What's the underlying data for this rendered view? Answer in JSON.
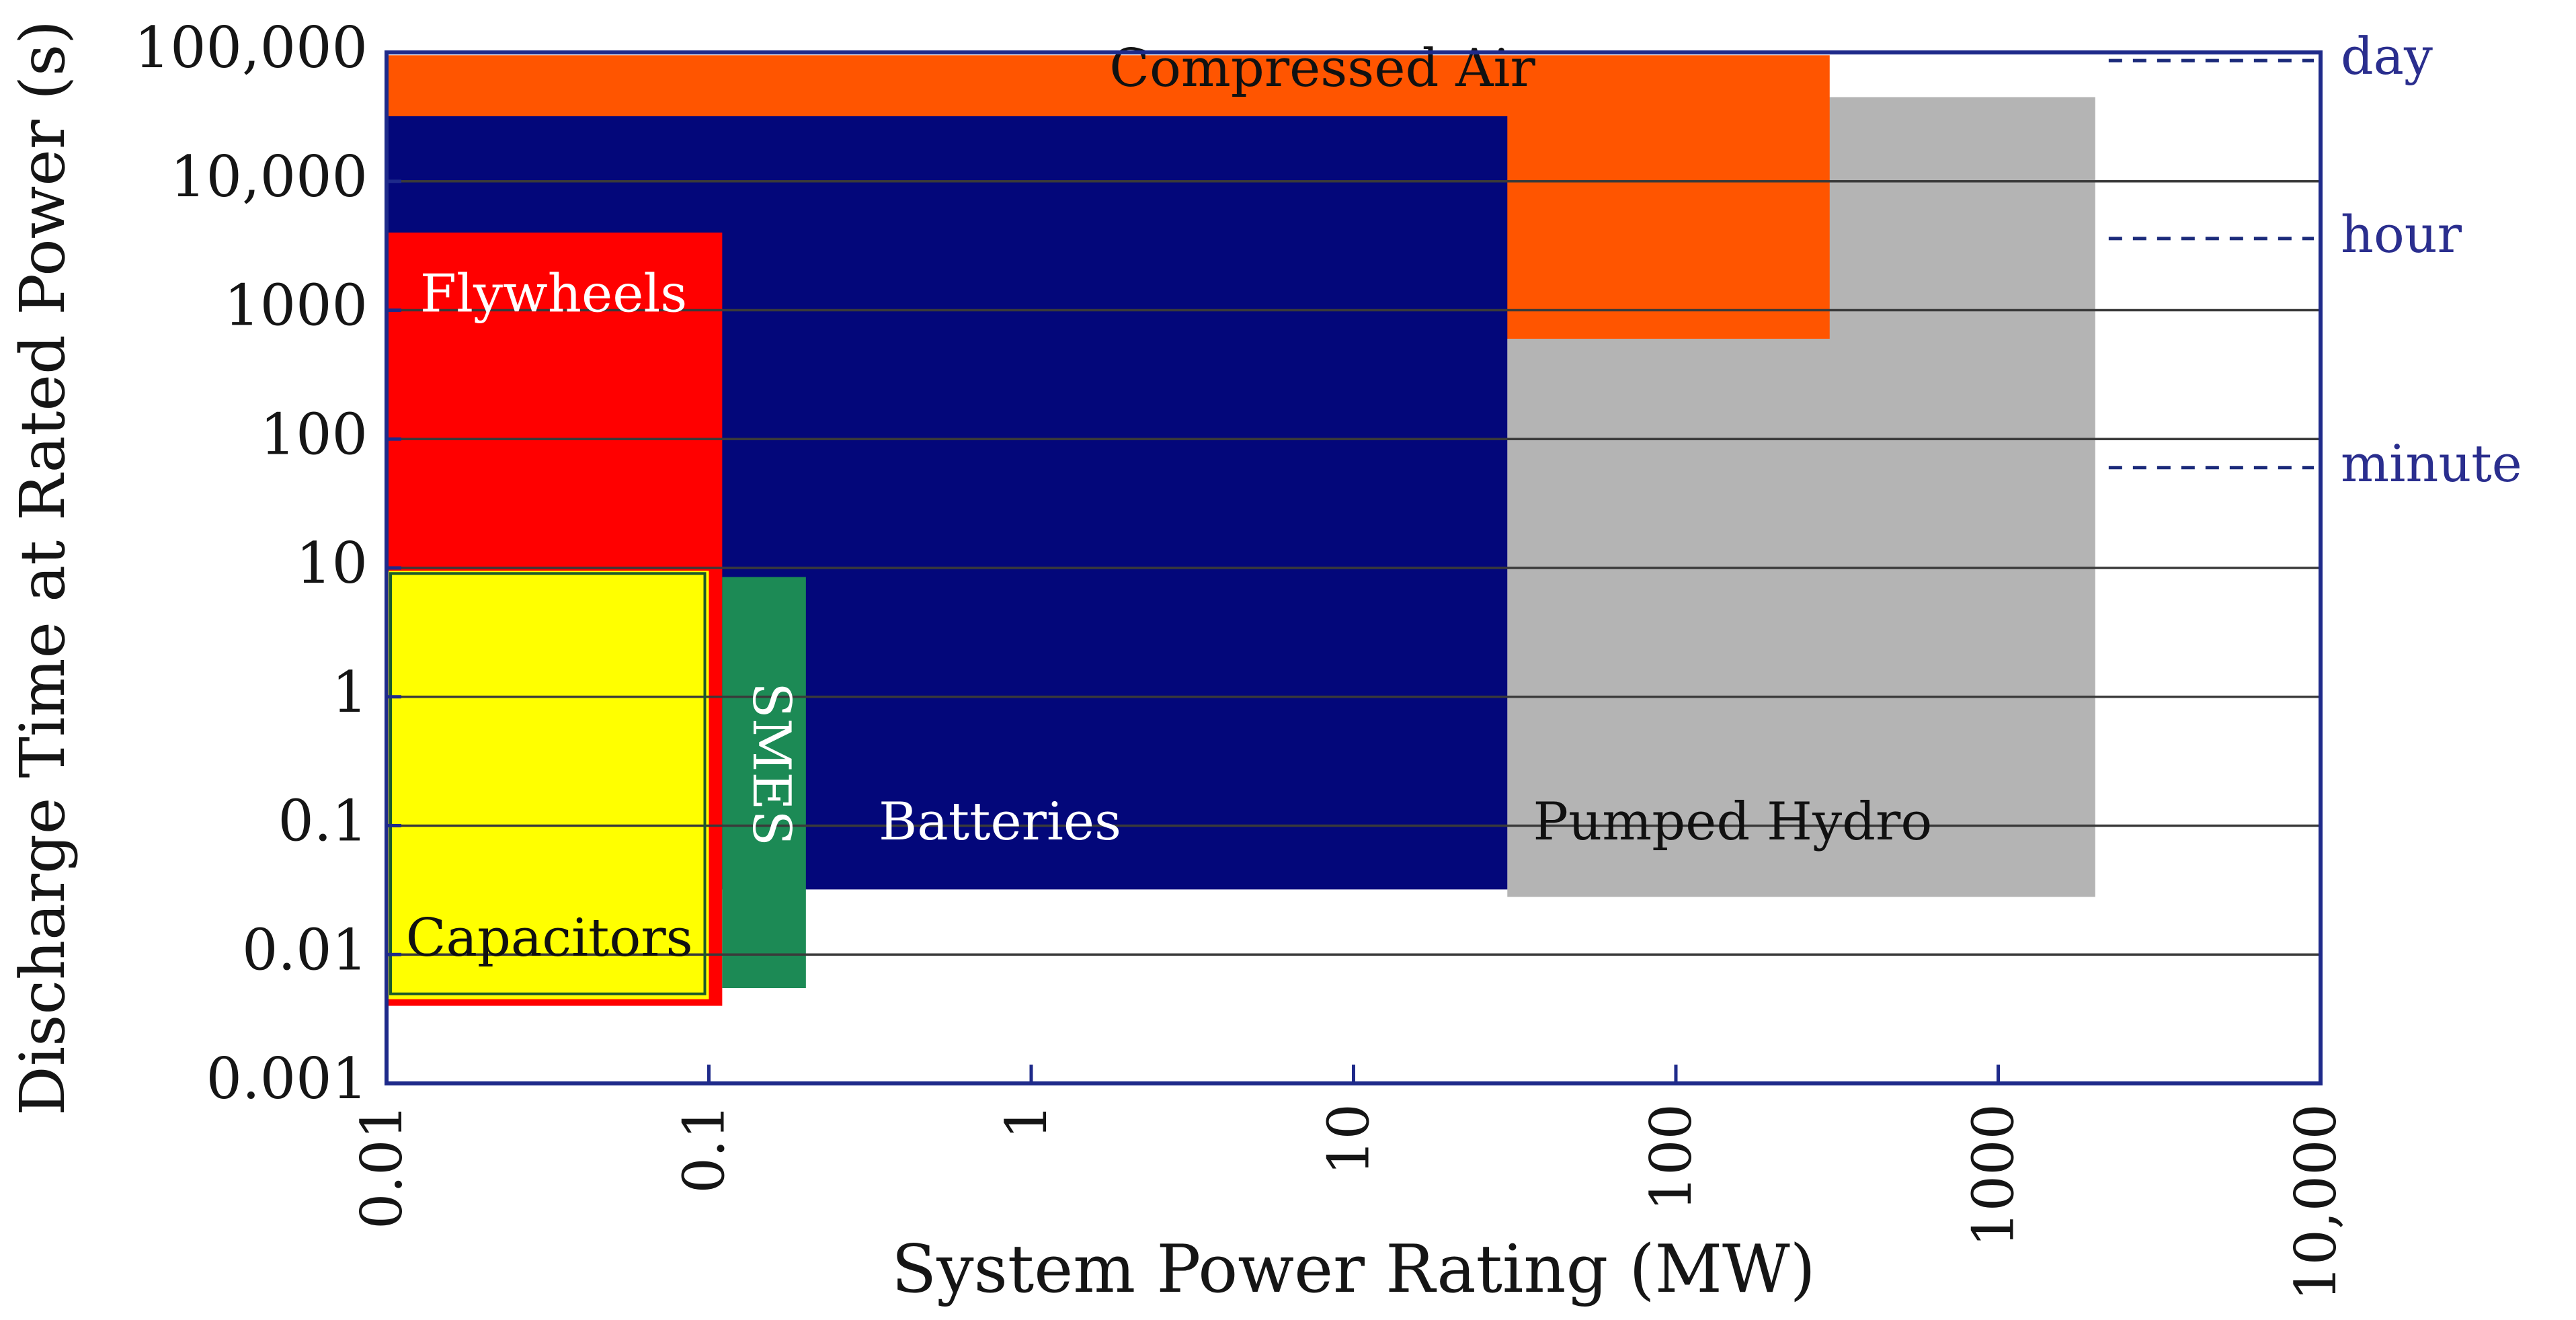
{
  "chart_data": {
    "type": "range-rectangles",
    "xlabel": "System Power Rating (MW)",
    "ylabel": "Discharge Time at Rated Power (s)",
    "x_scale": "log",
    "y_scale": "log",
    "xlim": [
      0.01,
      10000
    ],
    "ylim": [
      0.001,
      100000
    ],
    "x_ticks": [
      {
        "value": 0.01,
        "label": "0.01"
      },
      {
        "value": 0.1,
        "label": "0.1"
      },
      {
        "value": 1,
        "label": "1"
      },
      {
        "value": 10,
        "label": "10"
      },
      {
        "value": 100,
        "label": "100"
      },
      {
        "value": 1000,
        "label": "1000"
      },
      {
        "value": 10000,
        "label": "10,000"
      }
    ],
    "y_ticks": [
      {
        "value": 100000,
        "label": "100,000"
      },
      {
        "value": 10000,
        "label": "10,000"
      },
      {
        "value": 1000,
        "label": "1000"
      },
      {
        "value": 100,
        "label": "100"
      },
      {
        "value": 10,
        "label": "10"
      },
      {
        "value": 1,
        "label": "1"
      },
      {
        "value": 0.1,
        "label": "0.1"
      },
      {
        "value": 0.01,
        "label": "0.01"
      },
      {
        "value": 0.001,
        "label": "0.001"
      }
    ],
    "regions": [
      {
        "name": "Pumped Hydro",
        "x": [
          30,
          2000
        ],
        "y": [
          0.028,
          45000
        ],
        "color": "#b4b4b4",
        "label_color": "#111111",
        "label_at": [
          150,
          0.1
        ],
        "vertical": false
      },
      {
        "name": "Compressed Air",
        "x": [
          0.01,
          300
        ],
        "y": [
          600,
          95000
        ],
        "color": "#ff5500",
        "label_color": "#111111",
        "label_at": [
          8,
          70000
        ],
        "vertical": false
      },
      {
        "name": "Batteries",
        "x": [
          0.01,
          30
        ],
        "y": [
          0.032,
          32000
        ],
        "color": "#03077a",
        "label_color": "#ffffff",
        "label_at": [
          0.8,
          0.1
        ],
        "vertical": false
      },
      {
        "name": "Flywheels",
        "x": [
          0.01,
          0.11
        ],
        "y": [
          0.004,
          4000
        ],
        "color": "#ff0000",
        "label_color": "#ffffff",
        "label_at": [
          0.033,
          1250
        ],
        "vertical": false
      },
      {
        "name": "Capacitors",
        "x": [
          0.01,
          0.1
        ],
        "y": [
          0.0045,
          9.5
        ],
        "color": "#ffff00",
        "label_color": "#111111",
        "label_at": [
          0.032,
          0.0125
        ],
        "vertical": false
      },
      {
        "name": "SMES",
        "x": [
          0.11,
          0.2
        ],
        "y": [
          0.0055,
          8.5
        ],
        "color": "#1c8a55",
        "label_color": "#ffffff",
        "label_at": [
          0.152,
          0.3
        ],
        "vertical": true
      }
    ],
    "reference_lines": [
      {
        "label": "day",
        "value": 86400
      },
      {
        "label": "hour",
        "value": 3600
      },
      {
        "label": "minute",
        "value": 60
      }
    ],
    "grid": "horizontal"
  }
}
